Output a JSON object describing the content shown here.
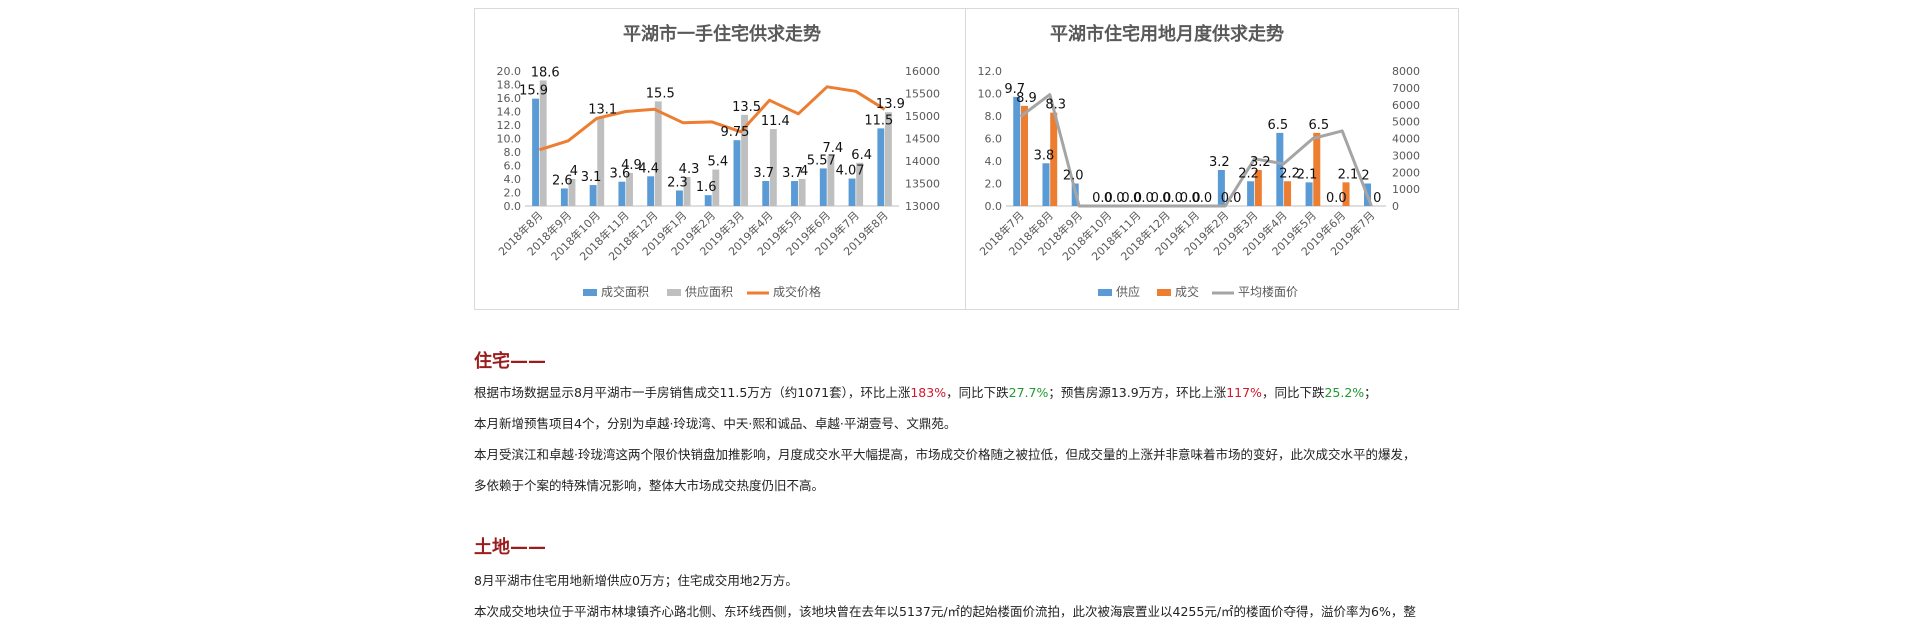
{
  "chart_data": [
    {
      "type": "bar",
      "title": "平湖市一手住宅供求走势",
      "categories": [
        "2018年8月",
        "2018年9月",
        "2018年10月",
        "2018年11月",
        "2018年12月",
        "2019年1月",
        "2019年2月",
        "2019年3月",
        "2019年4月",
        "2019年5月",
        "2019年6月",
        "2019年7月",
        "2019年8月"
      ],
      "series": [
        {
          "name": "成交面积",
          "type": "bar",
          "axis": "left",
          "color": "#5b9bd5",
          "values": [
            15.9,
            2.6,
            3.1,
            3.6,
            4.4,
            2.3,
            1.6,
            9.75,
            3.7,
            3.7,
            5.57,
            4.07,
            11.5
          ]
        },
        {
          "name": "供应面积",
          "type": "bar",
          "axis": "left",
          "color": "#bfbfbf",
          "values": [
            18.6,
            4,
            13.1,
            4.9,
            15.5,
            4.3,
            5.4,
            13.5,
            11.4,
            4,
            7.4,
            6.4,
            13.9
          ]
        },
        {
          "name": "成交价格",
          "type": "line",
          "axis": "right",
          "color": "#ed7d31",
          "values": [
            14250,
            14450,
            14950,
            15100,
            15150,
            14850,
            14870,
            14650,
            15350,
            15050,
            15650,
            15550,
            15150
          ]
        }
      ],
      "data_labels": [
        [
          "15.9",
          "2.6",
          "3.1",
          "3.6",
          "4.4",
          "2.3",
          "1.6",
          "9.75",
          "3.7",
          "3.7",
          "5.57",
          "4.07",
          "11.5"
        ],
        [
          "18.6",
          "4",
          "13.1",
          "4.9",
          "15.5",
          "4.3",
          "5.4",
          "13.5",
          "11.4",
          "4",
          "7.4",
          "6.4",
          "13.9"
        ]
      ],
      "y_ticks": [
        "0.0",
        "2.0",
        "4.0",
        "6.0",
        "8.0",
        "10.0",
        "12.0",
        "14.0",
        "16.0",
        "18.0",
        "20.0"
      ],
      "y2_ticks": [
        "13000",
        "13500",
        "14000",
        "14500",
        "15000",
        "15500",
        "16000"
      ],
      "ylim": [
        0,
        20
      ],
      "y2lim": [
        13000,
        16000
      ],
      "legend": "bottom",
      "grid": false
    },
    {
      "type": "bar",
      "title": "平湖市住宅用地月度供求走势",
      "categories": [
        "2018年7月",
        "2018年8月",
        "2018年9月",
        "2018年10月",
        "2018年11月",
        "2018年12月",
        "2019年1月",
        "2019年2月",
        "2019年3月",
        "2019年4月",
        "2019年5月",
        "2019年6月",
        "2019年7月"
      ],
      "series": [
        {
          "name": "供应",
          "type": "bar",
          "axis": "left",
          "color": "#5b9bd5",
          "values": [
            9.7,
            3.8,
            2.0,
            0,
            0,
            0,
            0,
            3.2,
            2.2,
            6.5,
            2.1,
            0,
            2
          ]
        },
        {
          "name": "成交",
          "type": "bar",
          "axis": "left",
          "color": "#ed7d31",
          "values": [
            8.9,
            8.3,
            0,
            0,
            0,
            0,
            0,
            0,
            3.2,
            2.2,
            6.5,
            2.1,
            0
          ]
        },
        {
          "name": "平均楼面价",
          "type": "line",
          "axis": "right",
          "color": "#a5a5a5",
          "values": [
            5300,
            6600,
            0,
            0,
            0,
            0,
            0,
            0,
            2800,
            2500,
            4000,
            4450,
            0
          ]
        }
      ],
      "data_labels": [
        [
          "9.7",
          "3.8",
          "2.0",
          "0.0",
          "0.0",
          "0.0",
          "0.0",
          "3.2",
          "2.2",
          "6.5",
          "2.1",
          "0.0",
          "2"
        ],
        [
          "8.9",
          "8.3",
          "",
          "0.0",
          "0.0",
          "0.0",
          "0.0",
          "0.0",
          "3.2",
          "2.2",
          "6.5",
          "2.1",
          "0"
        ]
      ],
      "y_ticks": [
        "0.0",
        "2.0",
        "4.0",
        "6.0",
        "8.0",
        "10.0",
        "12.0"
      ],
      "y2_ticks": [
        "0",
        "1000",
        "2000",
        "3000",
        "4000",
        "5000",
        "6000",
        "7000",
        "8000"
      ],
      "ylim": [
        0,
        12
      ],
      "y2lim": [
        0,
        8000
      ],
      "legend": "bottom",
      "grid": false
    }
  ],
  "sections": {
    "housing": {
      "title": "住宅——",
      "p1": [
        {
          "t": "根据市场数据显示8月平湖市一手房销售成交11.5万方（约1071套），环比上涨",
          "c": ""
        },
        {
          "t": "183%",
          "c": "red"
        },
        {
          "t": "，同比下跌",
          "c": ""
        },
        {
          "t": "27.7%",
          "c": "green"
        },
        {
          "t": "；预售房源13.9万方，环比上涨",
          "c": ""
        },
        {
          "t": "117%",
          "c": "red"
        },
        {
          "t": "，同比下跌",
          "c": ""
        },
        {
          "t": "25.2%",
          "c": "green"
        },
        {
          "t": "；",
          "c": ""
        }
      ],
      "p2": "本月新增预售项目4个，分别为卓越·玲珑湾、中天·熙和诚品、卓越·平湖壹号、文鼎苑。",
      "p3": "本月受滨江和卓越·玲珑湾这两个限价快销盘加推影响，月度成交水平大幅提高，市场成交价格随之被拉低，但成交量的上涨并非意味着市场的变好，此次成交水平的爆发，",
      "p4": "多依赖于个案的特殊情况影响，整体大市场成交热度仍旧不高。"
    },
    "land": {
      "title": "土地——",
      "p1": "8月平湖市住宅用地新增供应0万方；住宅成交用地2万方。",
      "p2": "本次成交地块位于平湖市林埭镇齐心路北侧、东环线西侧，该地块曾在去年以5137元/㎡的起始楼面价流拍，此次被海宸置业以4255元/㎡的楼面价夺得，溢价率为6%，整"
    }
  }
}
